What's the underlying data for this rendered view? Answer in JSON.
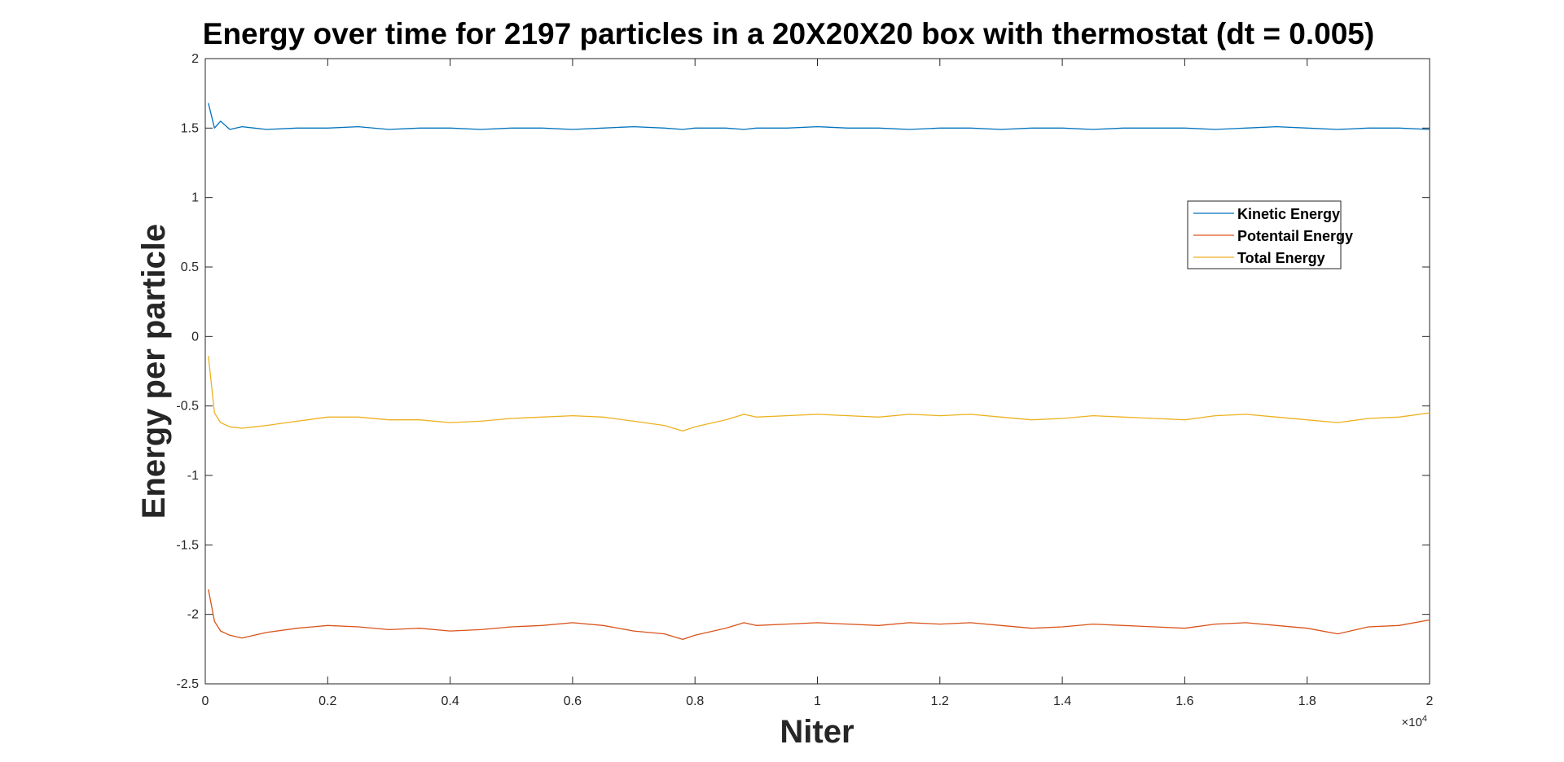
{
  "chart_data": {
    "type": "line",
    "title": "Energy over time for 2197 particles in a 20X20X20 box with thermostat (dt = 0.005)",
    "xlabel": "Niter",
    "ylabel": "Energy per particle",
    "xlim": [
      0,
      20000
    ],
    "ylim": [
      -2.5,
      2
    ],
    "x_exponent_label": "×10",
    "x_exponent_power": "4",
    "x_tick_values": [
      0,
      2000,
      4000,
      6000,
      8000,
      10000,
      12000,
      14000,
      16000,
      18000,
      20000
    ],
    "x_tick_labels": [
      "0",
      "0.2",
      "0.4",
      "0.6",
      "0.8",
      "1",
      "1.2",
      "1.4",
      "1.6",
      "1.8",
      "2"
    ],
    "y_tick_values": [
      2,
      1.5,
      1,
      0.5,
      0,
      -0.5,
      -1,
      -1.5,
      -2,
      -2.5
    ],
    "y_tick_labels": [
      "2",
      "1.5",
      "1",
      "0.5",
      "0",
      "-0.5",
      "-1",
      "-1.5",
      "-2",
      "-2.5"
    ],
    "grid": false,
    "legend_position": "upper-right",
    "x": [
      50,
      150,
      250,
      400,
      600,
      800,
      1000,
      1500,
      2000,
      2500,
      3000,
      3500,
      4000,
      4500,
      5000,
      5500,
      6000,
      6500,
      7000,
      7500,
      7800,
      8000,
      8500,
      8800,
      9000,
      9500,
      10000,
      10500,
      11000,
      11500,
      12000,
      12500,
      13000,
      13500,
      14000,
      14500,
      15000,
      15500,
      16000,
      16500,
      17000,
      17500,
      18000,
      18500,
      19000,
      19500,
      20000
    ],
    "series": [
      {
        "name": "Kinetic Energy",
        "color": "#0072BD",
        "values": [
          1.68,
          1.5,
          1.55,
          1.49,
          1.51,
          1.5,
          1.49,
          1.5,
          1.5,
          1.51,
          1.49,
          1.5,
          1.5,
          1.49,
          1.5,
          1.5,
          1.49,
          1.5,
          1.51,
          1.5,
          1.49,
          1.5,
          1.5,
          1.49,
          1.5,
          1.5,
          1.51,
          1.5,
          1.5,
          1.49,
          1.5,
          1.5,
          1.49,
          1.5,
          1.5,
          1.49,
          1.5,
          1.5,
          1.5,
          1.49,
          1.5,
          1.51,
          1.5,
          1.49,
          1.5,
          1.5,
          1.49
        ]
      },
      {
        "name": "Potentail Energy",
        "color": "#D95319",
        "values": [
          -1.82,
          -2.05,
          -2.12,
          -2.15,
          -2.17,
          -2.15,
          -2.13,
          -2.1,
          -2.08,
          -2.09,
          -2.11,
          -2.1,
          -2.12,
          -2.11,
          -2.09,
          -2.08,
          -2.06,
          -2.08,
          -2.12,
          -2.14,
          -2.18,
          -2.15,
          -2.1,
          -2.06,
          -2.08,
          -2.07,
          -2.06,
          -2.07,
          -2.08,
          -2.06,
          -2.07,
          -2.06,
          -2.08,
          -2.1,
          -2.09,
          -2.07,
          -2.08,
          -2.09,
          -2.1,
          -2.07,
          -2.06,
          -2.08,
          -2.1,
          -2.14,
          -2.09,
          -2.08,
          -2.04
        ]
      },
      {
        "name": "Total Energy",
        "color": "#EDB120",
        "values": [
          -0.14,
          -0.55,
          -0.62,
          -0.65,
          -0.66,
          -0.65,
          -0.64,
          -0.61,
          -0.58,
          -0.58,
          -0.6,
          -0.6,
          -0.62,
          -0.61,
          -0.59,
          -0.58,
          -0.57,
          -0.58,
          -0.61,
          -0.64,
          -0.68,
          -0.65,
          -0.6,
          -0.56,
          -0.58,
          -0.57,
          -0.56,
          -0.57,
          -0.58,
          -0.56,
          -0.57,
          -0.56,
          -0.58,
          -0.6,
          -0.59,
          -0.57,
          -0.58,
          -0.59,
          -0.6,
          -0.57,
          -0.56,
          -0.58,
          -0.6,
          -0.62,
          -0.59,
          -0.58,
          -0.55
        ]
      }
    ]
  }
}
